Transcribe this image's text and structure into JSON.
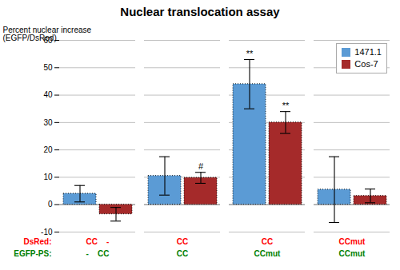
{
  "chart_data": {
    "type": "bar",
    "title": "Nuclear translocation assay",
    "ylabel": "Percent nuclear increase\n(EGFP/DsRed)",
    "category_rows": [
      {
        "name": "DsRed:",
        "color": "#FF0000",
        "labels": [
          "CC    -",
          "CC",
          "CC",
          "CCmut"
        ]
      },
      {
        "name": "EGFP-PS:",
        "color": "#008000",
        "labels": [
          "-    CC",
          "CC",
          "CCmut",
          "CCmut"
        ]
      }
    ],
    "series": [
      {
        "name": "1471.1",
        "color": "#5B9BD5",
        "values": [
          4.0,
          10.5,
          44.0,
          5.5
        ],
        "errors": [
          3.0,
          7.0,
          9.0,
          12.0
        ]
      },
      {
        "name": "Cos-7",
        "color": "#A52A2A",
        "values": [
          -3.5,
          9.8,
          30.0,
          3.2
        ],
        "errors": [
          2.5,
          2.0,
          4.0,
          2.5
        ]
      }
    ],
    "annotations": [
      {
        "text": "**",
        "series": "1471.1",
        "group": 2
      },
      {
        "text": "**",
        "series": "Cos-7",
        "group": 2
      },
      {
        "text": "#",
        "series": "Cos-7",
        "group": 1
      }
    ],
    "ylim": [
      -10,
      60
    ],
    "yticks": [
      -10,
      0,
      10,
      20,
      30,
      40,
      50,
      60
    ],
    "grid": true,
    "legend": "upper right"
  }
}
